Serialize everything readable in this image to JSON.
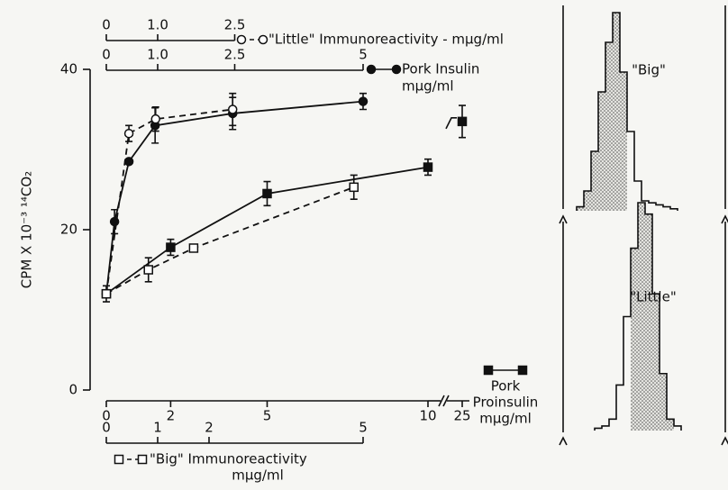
{
  "chart_data": [
    {
      "type": "line",
      "ylabel": "CPM X 10⁻³ ¹⁴CO₂",
      "ylim": [
        0,
        40
      ],
      "yticks": [
        0,
        20,
        40
      ],
      "x_axes": [
        {
          "label": [
            "\"Little\" Immunoreactivity - mμg/ml"
          ],
          "xlim": [
            0,
            2.5
          ],
          "xticks": [
            0,
            {
              "value": 1,
              "label": "1.0"
            },
            2.5
          ]
        },
        {
          "label": [
            "Pork Insulin",
            "mμg/ml"
          ],
          "xlim": [
            0,
            5
          ],
          "xticks": [
            0,
            {
              "value": 1,
              "label": "1.0"
            },
            2.5,
            5
          ]
        },
        {
          "label": [
            "Pork",
            "Proinsulin",
            "mμg/ml"
          ],
          "xlim": [
            0,
            10
          ],
          "xticks": [
            0,
            2,
            5,
            10
          ],
          "axis_break": {
            "after": 10,
            "ticks": [
              25
            ]
          }
        },
        {
          "label": [
            "\"Big\" Immunoreactivity",
            "mμg/ml"
          ],
          "xlim": [
            0,
            5
          ],
          "xticks": [
            0,
            1,
            2,
            5
          ]
        }
      ],
      "series": [
        {
          "x_axis": 1,
          "marker": "filled-circle",
          "dashed": false,
          "color": "#111111",
          "x": [
            0,
            0.16,
            0.44,
            0.95,
            2.46,
            5
          ],
          "values": [
            12,
            21,
            28.5,
            33,
            34.5,
            36
          ],
          "errors": [
            1,
            1.5,
            null,
            2.2,
            2,
            1
          ]
        },
        {
          "x_axis": 0,
          "marker": "open-circle",
          "dashed": true,
          "color": "#111111",
          "x": [
            0,
            0.44,
            0.96,
            2.46
          ],
          "values": [
            12,
            32,
            33.8,
            35
          ],
          "errors": [
            null,
            1,
            1.5,
            2
          ]
        },
        {
          "x_axis": 2,
          "marker": "filled-square",
          "dashed": false,
          "color": "#111111",
          "x": [
            0,
            2,
            5,
            10,
            25
          ],
          "values": [
            12,
            17.8,
            24.5,
            27.8,
            33.5
          ],
          "errors": [
            null,
            1,
            1.5,
            1,
            2
          ]
        },
        {
          "x_axis": 3,
          "marker": "open-square",
          "dashed": true,
          "color": "#111111",
          "x": [
            0,
            0.82,
            1.7,
            4.82
          ],
          "values": [
            12,
            15,
            17.7,
            25.3
          ],
          "errors": [
            null,
            1.5,
            null,
            1.5
          ]
        }
      ]
    },
    {
      "type": "step",
      "label": "\"Big\"",
      "ylim": [
        0,
        100
      ],
      "values": [
        2,
        10,
        30,
        60,
        85,
        100,
        70,
        40,
        15,
        5,
        4,
        3,
        2,
        1
      ],
      "shaded": [
        0,
        6
      ]
    },
    {
      "type": "step",
      "label": "\"Little\"",
      "ylim": [
        0,
        100
      ],
      "values": [
        1,
        2,
        5,
        20,
        50,
        80,
        100,
        95,
        60,
        25,
        5,
        2
      ],
      "shaded": [
        5,
        10
      ]
    }
  ]
}
